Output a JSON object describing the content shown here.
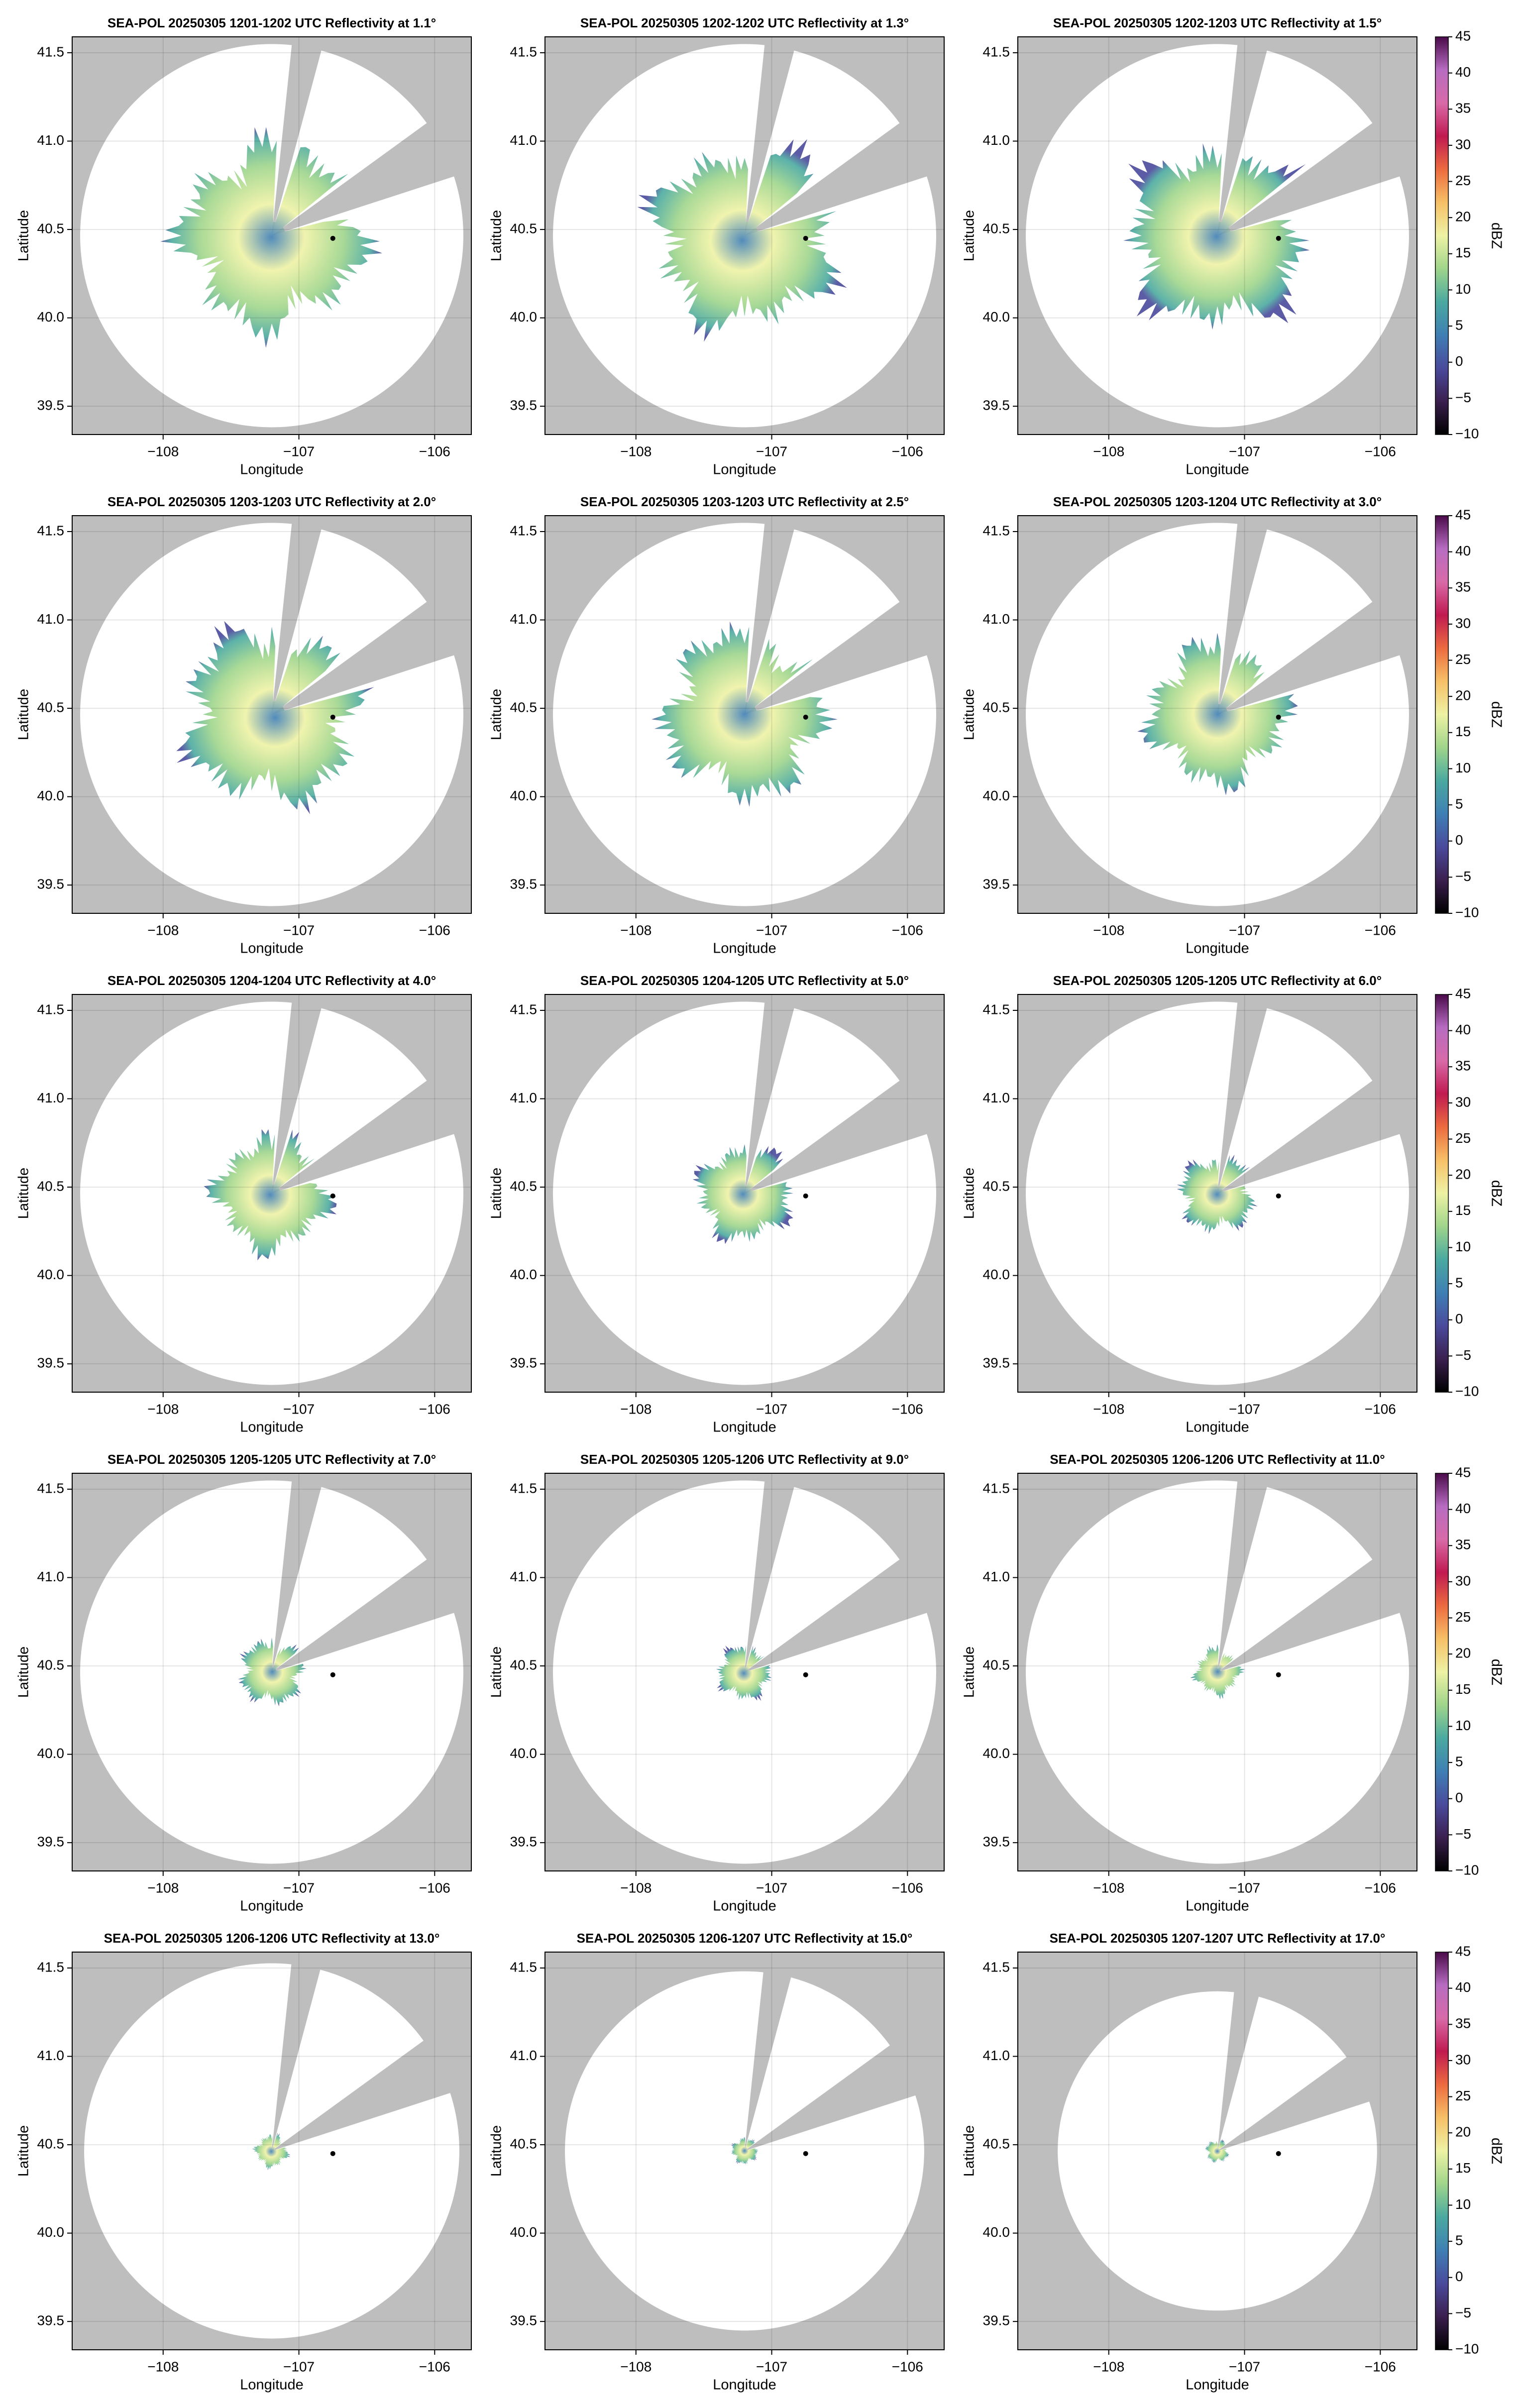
{
  "chart_data": [
    {
      "type": "radar",
      "title": "SEA-POL 20250305 1201-1202 UTC Reflectivity at 1.1°",
      "xlabel": "Longitude",
      "ylabel": "Latitude",
      "xlim": [
        -108.67,
        -105.73
      ],
      "ylim": [
        39.34,
        41.59
      ],
      "xticks": [
        {
          "value": -108,
          "label": "−108"
        },
        {
          "value": -107,
          "label": "−107"
        },
        {
          "value": -106,
          "label": "−106"
        }
      ],
      "yticks": [
        39.5,
        {
          "value": 40,
          "label": "40.0"
        },
        40.5,
        {
          "value": 41,
          "label": "41.0"
        },
        41.5
      ],
      "grid": true,
      "marker": {
        "x": -106.75,
        "y": 40.45,
        "color": "#000000"
      }
    },
    {
      "type": "radar",
      "title": "SEA-POL 20250305 1202-1202 UTC Reflectivity at 1.3°",
      "xlabel": "Longitude",
      "ylabel": "Latitude",
      "xlim": [
        -108.67,
        -105.73
      ],
      "ylim": [
        39.34,
        41.59
      ],
      "xticks": [
        {
          "value": -108,
          "label": "−108"
        },
        {
          "value": -107,
          "label": "−107"
        },
        {
          "value": -106,
          "label": "−106"
        }
      ],
      "yticks": [
        39.5,
        {
          "value": 40,
          "label": "40.0"
        },
        40.5,
        {
          "value": 41,
          "label": "41.0"
        },
        41.5
      ],
      "grid": true,
      "marker": {
        "x": -106.75,
        "y": 40.45,
        "color": "#000000"
      }
    },
    {
      "type": "radar",
      "title": "SEA-POL 20250305 1202-1203 UTC Reflectivity at 1.5°",
      "xlabel": "Longitude",
      "ylabel": "Latitude",
      "xlim": [
        -108.67,
        -105.73
      ],
      "ylim": [
        39.34,
        41.59
      ],
      "xticks": [
        {
          "value": -108,
          "label": "−108"
        },
        {
          "value": -107,
          "label": "−107"
        },
        {
          "value": -106,
          "label": "−106"
        }
      ],
      "yticks": [
        39.5,
        {
          "value": 40,
          "label": "40.0"
        },
        40.5,
        {
          "value": 41,
          "label": "41.0"
        },
        41.5
      ],
      "grid": true,
      "marker": {
        "x": -106.75,
        "y": 40.45,
        "color": "#000000"
      },
      "colorbar": {
        "label": "dBZ",
        "lim": [
          -10,
          45
        ],
        "ticks": [
          {
            "value": -10,
            "label": "−10"
          },
          {
            "value": -5,
            "label": "−5"
          },
          0,
          5,
          10,
          15,
          20,
          25,
          30,
          35,
          40,
          45
        ],
        "colormap": [
          "#000000",
          "#3b1f4f",
          "#4a4a9c",
          "#3f7fb4",
          "#4aa9a0",
          "#9fd58b",
          "#eef2a4",
          "#f7c067",
          "#ec6b3f",
          "#c01a50",
          "#d86aa8",
          "#b76cc1",
          "#4a0a4a"
        ]
      }
    },
    {
      "type": "radar",
      "title": "SEA-POL 20250305 1203-1203 UTC Reflectivity at 2.0°",
      "xlabel": "Longitude",
      "ylabel": "Latitude",
      "xlim": [
        -108.67,
        -105.73
      ],
      "ylim": [
        39.34,
        41.59
      ],
      "xticks": [
        {
          "value": -108,
          "label": "−108"
        },
        {
          "value": -107,
          "label": "−107"
        },
        {
          "value": -106,
          "label": "−106"
        }
      ],
      "yticks": [
        39.5,
        {
          "value": 40,
          "label": "40.0"
        },
        40.5,
        {
          "value": 41,
          "label": "41.0"
        },
        41.5
      ],
      "grid": true,
      "marker": {
        "x": -106.75,
        "y": 40.45,
        "color": "#000000"
      }
    },
    {
      "type": "radar",
      "title": "SEA-POL 20250305 1203-1203 UTC Reflectivity at 2.5°",
      "xlabel": "Longitude",
      "ylabel": "Latitude",
      "xlim": [
        -108.67,
        -105.73
      ],
      "ylim": [
        39.34,
        41.59
      ],
      "xticks": [
        {
          "value": -108,
          "label": "−108"
        },
        {
          "value": -107,
          "label": "−107"
        },
        {
          "value": -106,
          "label": "−106"
        }
      ],
      "yticks": [
        39.5,
        {
          "value": 40,
          "label": "40.0"
        },
        40.5,
        {
          "value": 41,
          "label": "41.0"
        },
        41.5
      ],
      "grid": true,
      "marker": {
        "x": -106.75,
        "y": 40.45,
        "color": "#000000"
      }
    },
    {
      "type": "radar",
      "title": "SEA-POL 20250305 1203-1204 UTC Reflectivity at 3.0°",
      "xlabel": "Longitude",
      "ylabel": "Latitude",
      "xlim": [
        -108.67,
        -105.73
      ],
      "ylim": [
        39.34,
        41.59
      ],
      "xticks": [
        {
          "value": -108,
          "label": "−108"
        },
        {
          "value": -107,
          "label": "−107"
        },
        {
          "value": -106,
          "label": "−106"
        }
      ],
      "yticks": [
        39.5,
        {
          "value": 40,
          "label": "40.0"
        },
        40.5,
        {
          "value": 41,
          "label": "41.0"
        },
        41.5
      ],
      "grid": true,
      "marker": {
        "x": -106.75,
        "y": 40.45,
        "color": "#000000"
      },
      "colorbar": {
        "label": "dBZ",
        "lim": [
          -10,
          45
        ],
        "ticks": [
          {
            "value": -10,
            "label": "−10"
          },
          {
            "value": -5,
            "label": "−5"
          },
          0,
          5,
          10,
          15,
          20,
          25,
          30,
          35,
          40,
          45
        ],
        "colormap": [
          "#000000",
          "#3b1f4f",
          "#4a4a9c",
          "#3f7fb4",
          "#4aa9a0",
          "#9fd58b",
          "#eef2a4",
          "#f7c067",
          "#ec6b3f",
          "#c01a50",
          "#d86aa8",
          "#b76cc1",
          "#4a0a4a"
        ]
      }
    },
    {
      "type": "radar",
      "title": "SEA-POL 20250305 1204-1204 UTC Reflectivity at 4.0°",
      "xlabel": "Longitude",
      "ylabel": "Latitude",
      "xlim": [
        -108.67,
        -105.73
      ],
      "ylim": [
        39.34,
        41.59
      ],
      "xticks": [
        {
          "value": -108,
          "label": "−108"
        },
        {
          "value": -107,
          "label": "−107"
        },
        {
          "value": -106,
          "label": "−106"
        }
      ],
      "yticks": [
        39.5,
        {
          "value": 40,
          "label": "40.0"
        },
        40.5,
        {
          "value": 41,
          "label": "41.0"
        },
        41.5
      ],
      "grid": true,
      "marker": {
        "x": -106.75,
        "y": 40.45,
        "color": "#000000"
      }
    },
    {
      "type": "radar",
      "title": "SEA-POL 20250305 1204-1205 UTC Reflectivity at 5.0°",
      "xlabel": "Longitude",
      "ylabel": "Latitude",
      "xlim": [
        -108.67,
        -105.73
      ],
      "ylim": [
        39.34,
        41.59
      ],
      "xticks": [
        {
          "value": -108,
          "label": "−108"
        },
        {
          "value": -107,
          "label": "−107"
        },
        {
          "value": -106,
          "label": "−106"
        }
      ],
      "yticks": [
        39.5,
        {
          "value": 40,
          "label": "40.0"
        },
        40.5,
        {
          "value": 41,
          "label": "41.0"
        },
        41.5
      ],
      "grid": true,
      "marker": {
        "x": -106.75,
        "y": 40.45,
        "color": "#000000"
      }
    },
    {
      "type": "radar",
      "title": "SEA-POL 20250305 1205-1205 UTC Reflectivity at 6.0°",
      "xlabel": "Longitude",
      "ylabel": "Latitude",
      "xlim": [
        -108.67,
        -105.73
      ],
      "ylim": [
        39.34,
        41.59
      ],
      "xticks": [
        {
          "value": -108,
          "label": "−108"
        },
        {
          "value": -107,
          "label": "−107"
        },
        {
          "value": -106,
          "label": "−106"
        }
      ],
      "yticks": [
        39.5,
        {
          "value": 40,
          "label": "40.0"
        },
        40.5,
        {
          "value": 41,
          "label": "41.0"
        },
        41.5
      ],
      "grid": true,
      "marker": {
        "x": -106.75,
        "y": 40.45,
        "color": "#000000"
      },
      "colorbar": {
        "label": "dBZ",
        "lim": [
          -10,
          45
        ],
        "ticks": [
          {
            "value": -10,
            "label": "−10"
          },
          {
            "value": -5,
            "label": "−5"
          },
          0,
          5,
          10,
          15,
          20,
          25,
          30,
          35,
          40,
          45
        ],
        "colormap": [
          "#000000",
          "#3b1f4f",
          "#4a4a9c",
          "#3f7fb4",
          "#4aa9a0",
          "#9fd58b",
          "#eef2a4",
          "#f7c067",
          "#ec6b3f",
          "#c01a50",
          "#d86aa8",
          "#b76cc1",
          "#4a0a4a"
        ]
      }
    },
    {
      "type": "radar",
      "title": "SEA-POL 20250305 1205-1205 UTC Reflectivity at 7.0°",
      "xlabel": "Longitude",
      "ylabel": "Latitude",
      "xlim": [
        -108.67,
        -105.73
      ],
      "ylim": [
        39.34,
        41.59
      ],
      "xticks": [
        {
          "value": -108,
          "label": "−108"
        },
        {
          "value": -107,
          "label": "−107"
        },
        {
          "value": -106,
          "label": "−106"
        }
      ],
      "yticks": [
        39.5,
        {
          "value": 40,
          "label": "40.0"
        },
        40.5,
        {
          "value": 41,
          "label": "41.0"
        },
        41.5
      ],
      "grid": true,
      "marker": {
        "x": -106.75,
        "y": 40.45,
        "color": "#000000"
      }
    },
    {
      "type": "radar",
      "title": "SEA-POL 20250305 1205-1206 UTC Reflectivity at 9.0°",
      "xlabel": "Longitude",
      "ylabel": "Latitude",
      "xlim": [
        -108.67,
        -105.73
      ],
      "ylim": [
        39.34,
        41.59
      ],
      "xticks": [
        {
          "value": -108,
          "label": "−108"
        },
        {
          "value": -107,
          "label": "−107"
        },
        {
          "value": -106,
          "label": "−106"
        }
      ],
      "yticks": [
        39.5,
        {
          "value": 40,
          "label": "40.0"
        },
        40.5,
        {
          "value": 41,
          "label": "41.0"
        },
        41.5
      ],
      "grid": true,
      "marker": {
        "x": -106.75,
        "y": 40.45,
        "color": "#000000"
      }
    },
    {
      "type": "radar",
      "title": "SEA-POL 20250305 1206-1206 UTC Reflectivity at 11.0°",
      "xlabel": "Longitude",
      "ylabel": "Latitude",
      "xlim": [
        -108.67,
        -105.73
      ],
      "ylim": [
        39.34,
        41.59
      ],
      "xticks": [
        {
          "value": -108,
          "label": "−108"
        },
        {
          "value": -107,
          "label": "−107"
        },
        {
          "value": -106,
          "label": "−106"
        }
      ],
      "yticks": [
        39.5,
        {
          "value": 40,
          "label": "40.0"
        },
        40.5,
        {
          "value": 41,
          "label": "41.0"
        },
        41.5
      ],
      "grid": true,
      "marker": {
        "x": -106.75,
        "y": 40.45,
        "color": "#000000"
      },
      "colorbar": {
        "label": "dBZ",
        "lim": [
          -10,
          45
        ],
        "ticks": [
          {
            "value": -10,
            "label": "−10"
          },
          {
            "value": -5,
            "label": "−5"
          },
          0,
          5,
          10,
          15,
          20,
          25,
          30,
          35,
          40,
          45
        ],
        "colormap": [
          "#000000",
          "#3b1f4f",
          "#4a4a9c",
          "#3f7fb4",
          "#4aa9a0",
          "#9fd58b",
          "#eef2a4",
          "#f7c067",
          "#ec6b3f",
          "#c01a50",
          "#d86aa8",
          "#b76cc1",
          "#4a0a4a"
        ]
      }
    },
    {
      "type": "radar",
      "title": "SEA-POL 20250305 1206-1206 UTC Reflectivity at 13.0°",
      "xlabel": "Longitude",
      "ylabel": "Latitude",
      "xlim": [
        -108.67,
        -105.73
      ],
      "ylim": [
        39.34,
        41.59
      ],
      "xticks": [
        {
          "value": -108,
          "label": "−108"
        },
        {
          "value": -107,
          "label": "−107"
        },
        {
          "value": -106,
          "label": "−106"
        }
      ],
      "yticks": [
        39.5,
        {
          "value": 40,
          "label": "40.0"
        },
        40.5,
        {
          "value": 41,
          "label": "41.0"
        },
        41.5
      ],
      "grid": true,
      "marker": {
        "x": -106.75,
        "y": 40.45,
        "color": "#000000"
      }
    },
    {
      "type": "radar",
      "title": "SEA-POL 20250305 1206-1207 UTC Reflectivity at 15.0°",
      "xlabel": "Longitude",
      "ylabel": "Latitude",
      "xlim": [
        -108.67,
        -105.73
      ],
      "ylim": [
        39.34,
        41.59
      ],
      "xticks": [
        {
          "value": -108,
          "label": "−108"
        },
        {
          "value": -107,
          "label": "−107"
        },
        {
          "value": -106,
          "label": "−106"
        }
      ],
      "yticks": [
        39.5,
        {
          "value": 40,
          "label": "40.0"
        },
        40.5,
        {
          "value": 41,
          "label": "41.0"
        },
        41.5
      ],
      "grid": true,
      "marker": {
        "x": -106.75,
        "y": 40.45,
        "color": "#000000"
      }
    },
    {
      "type": "radar",
      "title": "SEA-POL 20250305 1207-1207 UTC Reflectivity at 17.0°",
      "xlabel": "Longitude",
      "ylabel": "Latitude",
      "xlim": [
        -108.67,
        -105.73
      ],
      "ylim": [
        39.34,
        41.59
      ],
      "xticks": [
        {
          "value": -108,
          "label": "−108"
        },
        {
          "value": -107,
          "label": "−107"
        },
        {
          "value": -106,
          "label": "−106"
        }
      ],
      "yticks": [
        39.5,
        {
          "value": 40,
          "label": "40.0"
        },
        40.5,
        {
          "value": 41,
          "label": "41.0"
        },
        41.5
      ],
      "grid": true,
      "marker": {
        "x": -106.75,
        "y": 40.45,
        "color": "#000000"
      },
      "colorbar": {
        "label": "dBZ",
        "lim": [
          -10,
          45
        ],
        "ticks": [
          {
            "value": -10,
            "label": "−10"
          },
          {
            "value": -5,
            "label": "−5"
          },
          0,
          5,
          10,
          15,
          20,
          25,
          30,
          35,
          40,
          45
        ],
        "colormap": [
          "#000000",
          "#3b1f4f",
          "#4a4a9c",
          "#3f7fb4",
          "#4aa9a0",
          "#9fd58b",
          "#eef2a4",
          "#f7c067",
          "#ec6b3f",
          "#c01a50",
          "#d86aa8",
          "#b76cc1",
          "#4a0a4a"
        ]
      }
    }
  ]
}
